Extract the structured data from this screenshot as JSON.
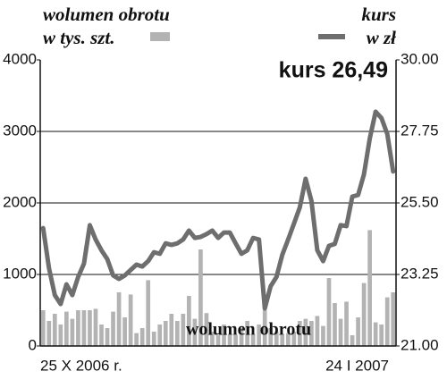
{
  "chart_data": {
    "type": "bar",
    "categories": [
      "25 X 2006 r.",
      null,
      null,
      null,
      null,
      null,
      null,
      null,
      null,
      null,
      null,
      null,
      null,
      null,
      null,
      null,
      null,
      null,
      null,
      null,
      null,
      null,
      null,
      null,
      null,
      null,
      null,
      null,
      null,
      null,
      null,
      null,
      null,
      null,
      null,
      null,
      null,
      null,
      null,
      null,
      null,
      null,
      null,
      null,
      null,
      null,
      null,
      null,
      null,
      null,
      null,
      null,
      null,
      null,
      null,
      null,
      null,
      null,
      null,
      null,
      "24 I 2007"
    ],
    "series": [
      {
        "name": "wolumen obrotu",
        "unit": "w tys. szt.",
        "type": "bar",
        "color": "#b3b3b3",
        "values": [
          500,
          350,
          450,
          300,
          480,
          380,
          500,
          500,
          500,
          520,
          300,
          250,
          480,
          750,
          400,
          720,
          180,
          250,
          920,
          200,
          300,
          350,
          450,
          350,
          450,
          700,
          380,
          1350,
          460,
          200,
          150,
          300,
          150,
          150,
          250,
          350,
          150,
          300,
          500,
          250,
          200,
          150,
          180,
          200,
          350,
          380,
          350,
          420,
          280,
          950,
          600,
          380,
          620,
          150,
          400,
          880,
          1620,
          330,
          300,
          680,
          750
        ]
      },
      {
        "name": "kurs",
        "unit": "w zł",
        "type": "line",
        "axis": "y2",
        "color": "#6e6e6e",
        "values": [
          24.71,
          23.45,
          22.6,
          22.32,
          22.94,
          22.6,
          23.17,
          23.59,
          24.8,
          24.35,
          24.01,
          23.73,
          23.22,
          23.11,
          23.22,
          23.39,
          23.56,
          23.5,
          23.67,
          23.95,
          23.9,
          24.23,
          24.18,
          24.23,
          24.35,
          24.63,
          24.4,
          24.43,
          24.52,
          24.63,
          24.4,
          24.57,
          24.57,
          24.23,
          23.9,
          24.01,
          24.4,
          24.35,
          22.18,
          22.88,
          23.17,
          23.87,
          24.35,
          24.85,
          25.36,
          26.26,
          25.56,
          24.01,
          23.67,
          24.15,
          24.21,
          24.8,
          24.77,
          25.7,
          25.75,
          26.4,
          27.53,
          28.37,
          28.17,
          27.67,
          26.49
        ]
      }
    ],
    "ylim": [
      0,
      4000
    ],
    "yticks": [
      0,
      1000,
      2000,
      3000,
      4000
    ],
    "y2lim": [
      21,
      30
    ],
    "y2ticks": [
      {
        "value": 21,
        "label": "21.00"
      },
      23.25,
      {
        "value": 25.5,
        "label": "25.50"
      },
      27.75,
      {
        "value": 30,
        "label": "30.00"
      }
    ],
    "grid": true,
    "annotations": [
      "kurs 26,49",
      "wolumen obrotu"
    ]
  }
}
